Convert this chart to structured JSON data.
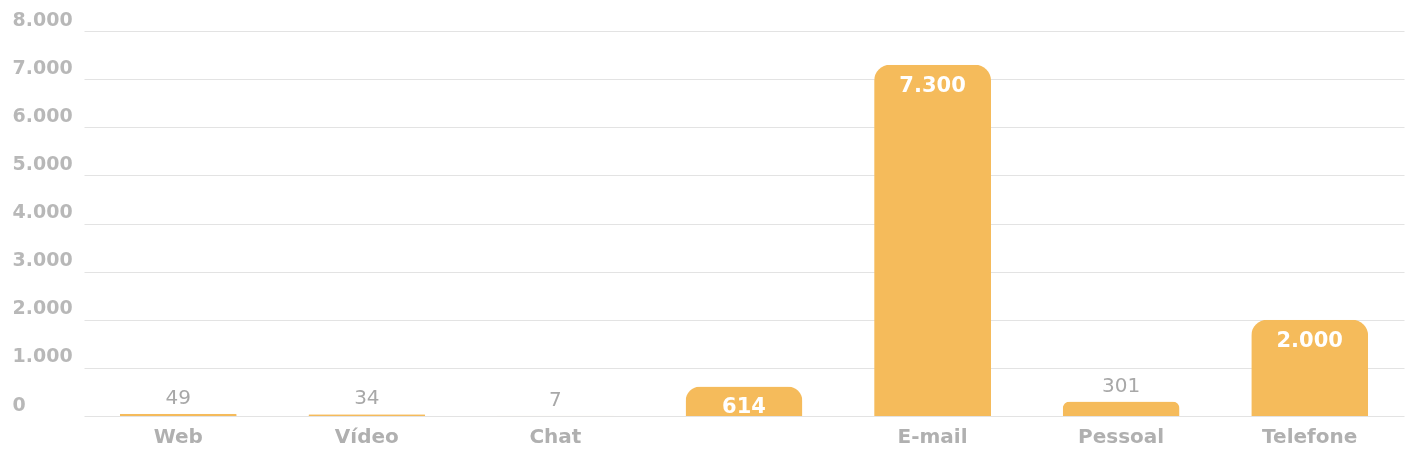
{
  "chart_data": {
    "type": "bar",
    "categories": [
      "Web",
      "Vídeo",
      "Chat",
      null,
      "E-mail",
      "Pessoal",
      "Telefone"
    ],
    "values": [
      49,
      34,
      7,
      614,
      7300,
      301,
      2000
    ],
    "value_labels": [
      "49",
      "34",
      "7",
      "614",
      "7.300",
      "301",
      "2.000"
    ],
    "color": "#f5bb5b",
    "ylim": [
      0,
      8000
    ],
    "yticks": [
      {
        "value": 0,
        "label": "0"
      },
      {
        "value": 1000,
        "label": "1.000"
      },
      {
        "value": 2000,
        "label": "2.000"
      },
      {
        "value": 3000,
        "label": "3.000"
      },
      {
        "value": 4000,
        "label": "4.000"
      },
      {
        "value": 5000,
        "label": "5.000"
      },
      {
        "value": 6000,
        "label": "6.000"
      },
      {
        "value": 7000,
        "label": "7.000"
      },
      {
        "value": 8000,
        "label": "8.000"
      }
    ],
    "grid": "y"
  }
}
